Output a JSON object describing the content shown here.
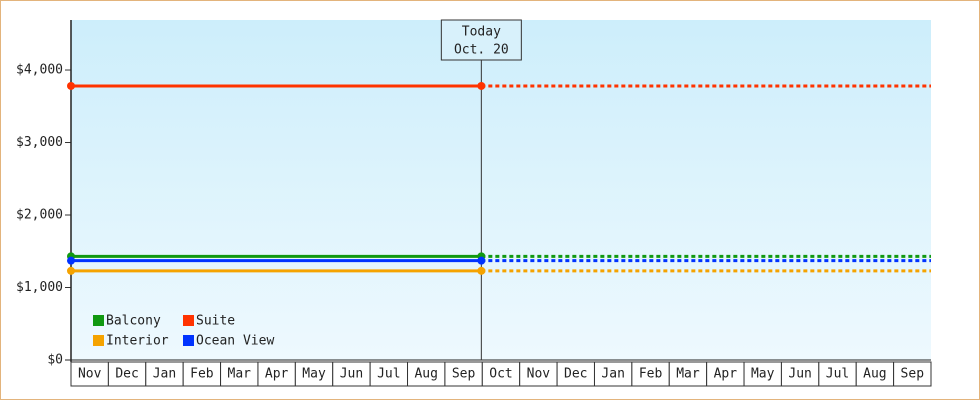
{
  "chart_data": {
    "type": "line",
    "categories": [
      "Nov",
      "Dec",
      "Jan",
      "Feb",
      "Mar",
      "Apr",
      "May",
      "Jun",
      "Jul",
      "Aug",
      "Sep",
      "Oct",
      "Nov",
      "Dec",
      "Jan",
      "Feb",
      "Mar",
      "Apr",
      "May",
      "Jun",
      "Jul",
      "Aug",
      "Sep"
    ],
    "series": [
      {
        "name": "Balcony",
        "color": "#119911",
        "value": 1430
      },
      {
        "name": "Suite",
        "color": "#ff3300",
        "value": 3780
      },
      {
        "name": "Interior",
        "color": "#f5a300",
        "value": 1230
      },
      {
        "name": "Ocean View",
        "color": "#0033ff",
        "value": 1370
      }
    ],
    "annotation": [
      "Today",
      "Oct. 20"
    ],
    "ylim": [
      0,
      4690
    ],
    "yticks": [
      {
        "value": 0,
        "label": "$0"
      },
      {
        "value": 1000,
        "label": "$1,000"
      },
      {
        "value": 2000,
        "label": "$2,000"
      },
      {
        "value": 3000,
        "label": "$3,000"
      },
      {
        "value": 4000,
        "label": "$4,000"
      }
    ],
    "legend": "lower-left"
  }
}
